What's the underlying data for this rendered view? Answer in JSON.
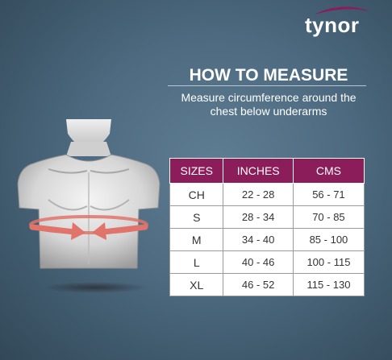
{
  "brand": {
    "name": "tynor"
  },
  "heading": "HOW TO MEASURE",
  "instruction": "Measure circumference around the chest below underarms",
  "table": {
    "headers": [
      "SIZES",
      "INCHES",
      "CMS"
    ],
    "rows": [
      {
        "size": "CH",
        "inches": "22 - 28",
        "cms": "56 - 71"
      },
      {
        "size": "S",
        "inches": "28 - 34",
        "cms": "70 - 85"
      },
      {
        "size": "M",
        "inches": "34 - 40",
        "cms": "85 - 100"
      },
      {
        "size": "L",
        "inches": "40 - 46",
        "cms": "100 - 115"
      },
      {
        "size": "XL",
        "inches": "46 - 52",
        "cms": "115 - 130"
      }
    ]
  },
  "colors": {
    "header_bg": "#8c1d5b",
    "arrow": "#e0736a",
    "background": "#4d6a80"
  }
}
